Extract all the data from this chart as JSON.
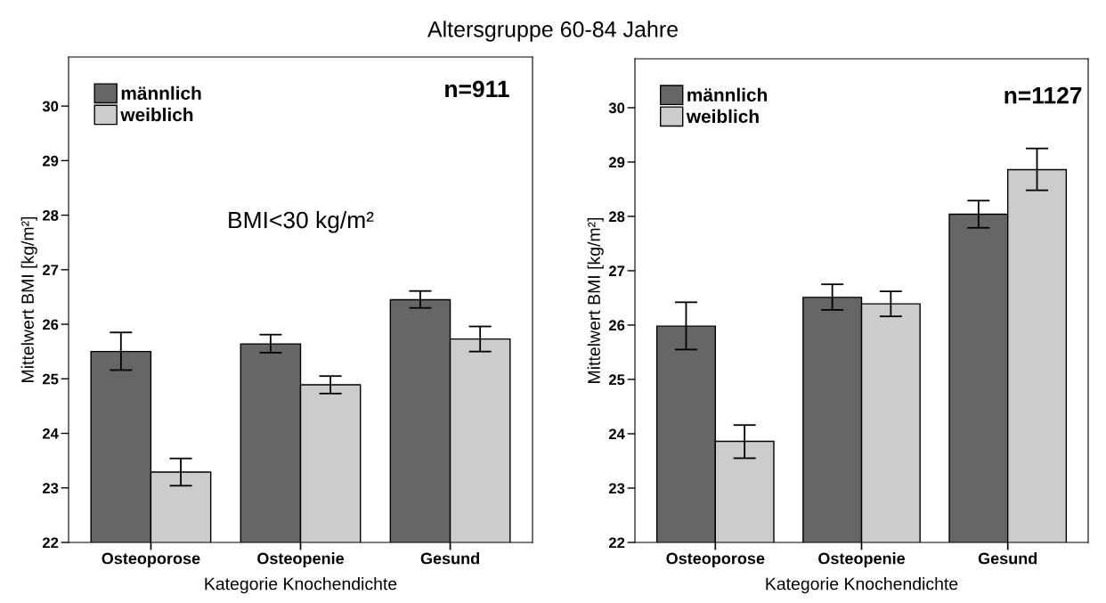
{
  "chart_data": [
    {
      "type": "bar",
      "title": "Altersgruppe 60-84 Jahre",
      "xlabel": "Kategorie Knochendichte",
      "ylabel": "Mittelwert BMI [kg/m²]",
      "categories": [
        "Osteoporose",
        "Osteopenie",
        "Gesund"
      ],
      "series": [
        {
          "name": "männlich",
          "color": "#666666",
          "values": [
            25.5,
            25.64,
            26.45
          ],
          "errors": [
            [
              25.16,
              25.85
            ],
            [
              25.48,
              25.81
            ],
            [
              26.3,
              26.61
            ]
          ]
        },
        {
          "name": "weiblich",
          "color": "#cccccc",
          "values": [
            23.29,
            24.89,
            25.73
          ],
          "errors": [
            [
              23.04,
              23.54
            ],
            [
              24.73,
              25.05
            ],
            [
              25.5,
              25.96
            ]
          ]
        }
      ],
      "ylim": [
        22,
        30.9
      ],
      "yticks": [
        22,
        23,
        24,
        25,
        26,
        27,
        28,
        29,
        30
      ],
      "grid": false,
      "legend": "top left",
      "annotations": [
        "n=911",
        "BMI<30 kg/m²"
      ]
    },
    {
      "type": "bar",
      "xlabel": "Kategorie Knochendichte",
      "ylabel": "Mittelwert BMI [kg/m²]",
      "categories": [
        "Osteoporose",
        "Osteopenie",
        "Gesund"
      ],
      "series": [
        {
          "name": "männlich",
          "color": "#666666",
          "values": [
            25.98,
            26.51,
            28.04
          ],
          "errors": [
            [
              25.55,
              26.42
            ],
            [
              26.28,
              26.75
            ],
            [
              27.79,
              28.29
            ]
          ]
        },
        {
          "name": "weiblich",
          "color": "#cccccc",
          "values": [
            23.86,
            26.39,
            28.86
          ],
          "errors": [
            [
              23.55,
              24.16
            ],
            [
              26.16,
              26.62
            ],
            [
              28.48,
              29.25
            ]
          ]
        }
      ],
      "ylim": [
        22,
        30.9
      ],
      "yticks": [
        22,
        23,
        24,
        25,
        26,
        27,
        28,
        29,
        30
      ],
      "grid": false,
      "legend": "top left",
      "annotations": [
        "n=1127"
      ]
    }
  ]
}
